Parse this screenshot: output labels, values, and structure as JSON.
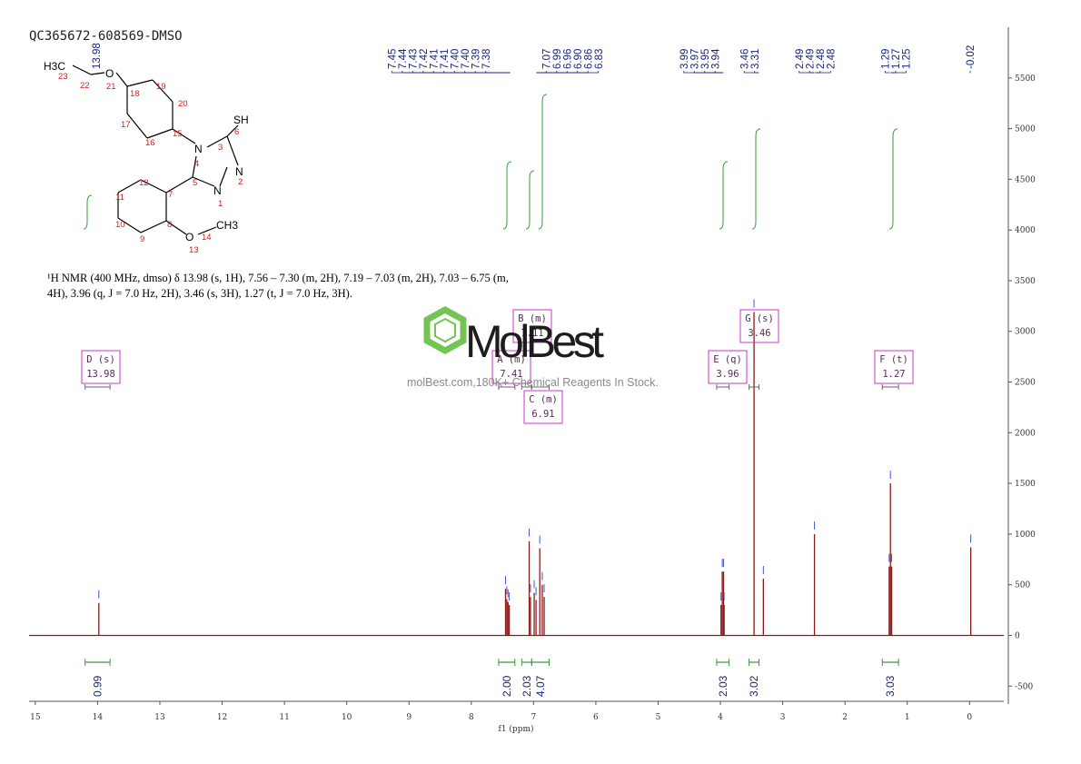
{
  "sample_id": "QC365672-608569-DMSO",
  "nmr_description": {
    "line1": "¹H NMR (400 MHz, dmso) δ 13.98 (s, 1H), 7.56 – 7.30 (m, 2H), 7.19 – 7.03 (m, 2H), 7.03 – 6.75 (m,",
    "line2": "4H), 3.96 (q, J = 7.0 Hz, 2H), 3.46 (s, 3H), 1.27 (t, J = 7.0 Hz, 3H)."
  },
  "watermark": {
    "brand": "MolBest",
    "url_text": "molBest.com,180K+ Chemical Reagents In Stock.",
    "color": "#6cc24a"
  },
  "structure": {
    "atom_labels": [
      "H3C",
      "O",
      "SH",
      "N",
      "N",
      "N",
      "O",
      "CH3"
    ],
    "atom_numbers": [
      "23",
      "22",
      "21",
      "20",
      "19",
      "18",
      "17",
      "16",
      "15",
      "6",
      "3",
      "4",
      "5",
      "2",
      "1",
      "12",
      "11",
      "10",
      "9",
      "8",
      "7",
      "13",
      "14"
    ]
  },
  "chart_data": {
    "type": "line",
    "title": "",
    "xlabel": "f1 (ppm)",
    "ylabel": "",
    "xlim": [
      15.1,
      -0.55
    ],
    "ylim": [
      -650,
      6000
    ],
    "x_reversed": true,
    "x_ticks": [
      15,
      14,
      13,
      12,
      11,
      10,
      9,
      8,
      7,
      6,
      5,
      4,
      3,
      2,
      1,
      0
    ],
    "y_ticks": [
      -500,
      0,
      500,
      1000,
      1500,
      2000,
      2500,
      3000,
      3500,
      4000,
      4500,
      5000,
      5500
    ],
    "peak_label_groups": [
      [
        "7.45",
        "7.44",
        "7.43",
        "7.42",
        "7.41",
        "7.41",
        "7.40",
        "7.40",
        "7.39",
        "7.38"
      ],
      [
        "7.07",
        "6.99",
        "6.96",
        "6.90",
        "6.86",
        "6.83"
      ],
      [
        "3.99",
        "3.97",
        "3.95",
        "3.94"
      ],
      [
        "3.46",
        "3.31"
      ],
      [
        "2.49",
        "2.49",
        "2.48",
        "2.48"
      ],
      [
        "1.29",
        "1.27",
        "1.25"
      ],
      [
        "-0.02"
      ]
    ],
    "peak_label_13_98": "13.98",
    "peaks": [
      {
        "ppm": 13.98,
        "height": 320
      },
      {
        "ppm": 7.45,
        "height": 460
      },
      {
        "ppm": 7.43,
        "height": 360
      },
      {
        "ppm": 7.41,
        "height": 330
      },
      {
        "ppm": 7.39,
        "height": 300
      },
      {
        "ppm": 7.07,
        "height": 930
      },
      {
        "ppm": 7.05,
        "height": 380
      },
      {
        "ppm": 6.99,
        "height": 420
      },
      {
        "ppm": 6.96,
        "height": 350
      },
      {
        "ppm": 6.9,
        "height": 860
      },
      {
        "ppm": 6.86,
        "height": 500
      },
      {
        "ppm": 6.83,
        "height": 380
      },
      {
        "ppm": 3.99,
        "height": 300
      },
      {
        "ppm": 3.97,
        "height": 630
      },
      {
        "ppm": 3.95,
        "height": 630
      },
      {
        "ppm": 3.94,
        "height": 300
      },
      {
        "ppm": 3.46,
        "height": 3190
      },
      {
        "ppm": 3.31,
        "height": 560
      },
      {
        "ppm": 2.49,
        "height": 1000
      },
      {
        "ppm": 1.29,
        "height": 680
      },
      {
        "ppm": 1.27,
        "height": 1500
      },
      {
        "ppm": 1.25,
        "height": 680
      },
      {
        "ppm": -0.02,
        "height": 870
      }
    ],
    "multiplets": [
      {
        "label": "D (s)",
        "shift": "13.98",
        "from": 14.2,
        "to": 13.8
      },
      {
        "label": "A (m)",
        "shift": "7.41",
        "from": 7.56,
        "to": 7.3
      },
      {
        "label": "B (m)",
        "shift": "7.11",
        "from": 7.19,
        "to": 7.03
      },
      {
        "label": "C (m)",
        "shift": "6.91",
        "from": 7.03,
        "to": 6.75
      },
      {
        "label": "E (q)",
        "shift": "3.96",
        "from": 4.06,
        "to": 3.86
      },
      {
        "label": "G (s)",
        "shift": "3.46",
        "from": 3.54,
        "to": 3.38
      },
      {
        "label": "F (t)",
        "shift": "1.27",
        "from": 1.4,
        "to": 1.14
      }
    ],
    "integrals": [
      {
        "value": "0.99",
        "from": 14.2,
        "to": 13.8
      },
      {
        "value": "2.00",
        "from": 7.56,
        "to": 7.3
      },
      {
        "value": "2.03",
        "from": 7.19,
        "to": 7.03
      },
      {
        "value": "4.07",
        "from": 7.03,
        "to": 6.75
      },
      {
        "value": "2.03",
        "from": 4.06,
        "to": 3.86
      },
      {
        "value": "3.02",
        "from": 3.54,
        "to": 3.38
      },
      {
        "value": "3.03",
        "from": 1.4,
        "to": 1.14
      }
    ],
    "colors": {
      "spectrum": "#8b1a1a",
      "peak_labels": "#1a237e",
      "integral": "#3a9a3a",
      "multiplet_box": "#cc33cc",
      "axis": "#555555"
    }
  }
}
